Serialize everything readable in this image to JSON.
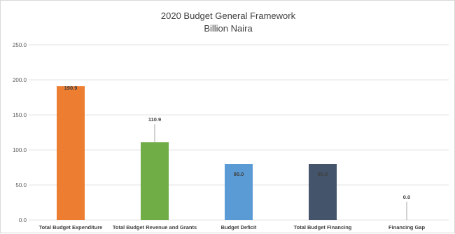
{
  "chart_data": {
    "type": "bar",
    "title": "2020 Budget General Framework",
    "subtitle": "Billion Naira",
    "categories": [
      "Total Budget Expenditure",
      "Total Budget Revenue and Grants",
      "Budget Deficit",
      "Total Budget Financing",
      "Financing Gap"
    ],
    "values": [
      190.9,
      110.9,
      80.0,
      80.0,
      0.0
    ],
    "value_labels": [
      "190.9",
      "110.9",
      "80.0",
      "80.0",
      "0.0"
    ],
    "bar_colors": [
      "#ED7D31",
      "#70AD47",
      "#5B9BD5",
      "#44546A",
      "#A5A5A5"
    ],
    "ylim": [
      0,
      250
    ],
    "yticks": [
      0,
      50,
      100,
      150,
      200,
      250
    ],
    "ytick_labels": [
      "0.0",
      "50.0",
      "100.0",
      "150.0",
      "200.0",
      "250.0"
    ],
    "xlabel": "",
    "ylabel": "",
    "grid": true,
    "legend": "none"
  }
}
